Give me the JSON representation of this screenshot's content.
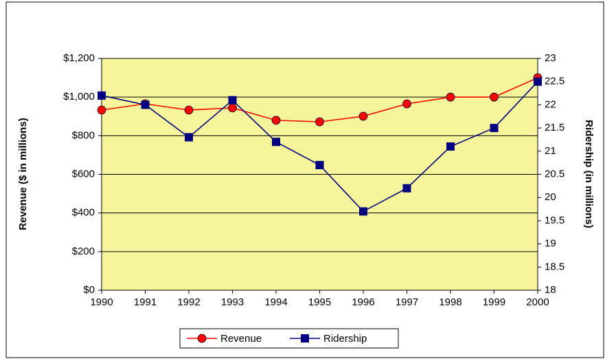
{
  "chart_data": {
    "type": "line",
    "categories": [
      "1990",
      "1991",
      "1992",
      "1993",
      "1994",
      "1995",
      "1996",
      "1997",
      "1998",
      "1999",
      "2000"
    ],
    "series": [
      {
        "name": "Revenue",
        "color": "#ff0000",
        "marker": "circle",
        "axis": "y",
        "values": [
          933,
          965,
          933,
          944,
          880,
          872,
          901,
          965,
          1000,
          1000,
          1100
        ]
      },
      {
        "name": "Ridership",
        "color": "#000080",
        "marker": "square",
        "axis": "y2",
        "values": [
          22.2,
          22.0,
          21.3,
          22.1,
          21.2,
          20.7,
          19.7,
          20.2,
          21.1,
          21.5,
          22.5
        ]
      }
    ],
    "ylabel": "Revenue ($ in millions)",
    "y2label": "Ridership (in millions)",
    "ylim": [
      0,
      1200
    ],
    "yticks": [
      {
        "value": 0,
        "label": "$0"
      },
      {
        "value": 200,
        "label": "$200"
      },
      {
        "value": 400,
        "label": "$400"
      },
      {
        "value": 600,
        "label": "$600"
      },
      {
        "value": 800,
        "label": "$800"
      },
      {
        "value": 1000,
        "label": "$1,000"
      },
      {
        "value": 1200,
        "label": "$1,200"
      }
    ],
    "y2lim": [
      18,
      23
    ],
    "y2ticks": [
      18,
      18.5,
      19,
      19.5,
      20,
      20.5,
      21,
      21.5,
      22,
      22.5,
      23
    ],
    "grid": true,
    "legend": "bottom",
    "plot_background": "#f7f59c"
  }
}
